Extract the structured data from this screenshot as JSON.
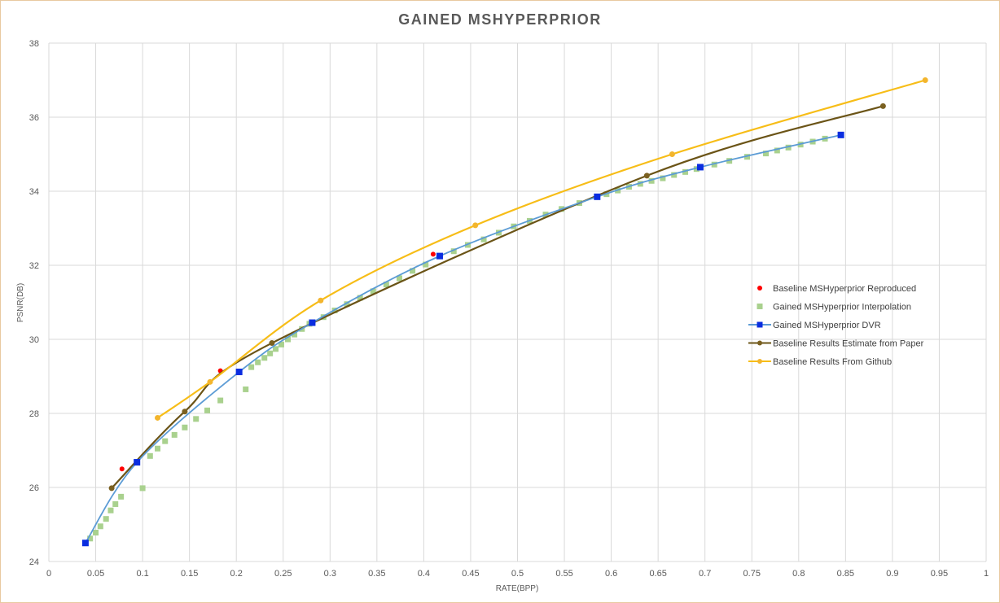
{
  "chart_data": {
    "type": "scatter",
    "title": "GAINED MSHYPERPRIOR",
    "xlabel": "RATE(BPP)",
    "ylabel": "PSNR(DB)",
    "xlim": [
      0,
      1
    ],
    "ylim": [
      24,
      38
    ],
    "xticks": [
      "0",
      "0.05",
      "0.1",
      "0.15",
      "0.2",
      "0.25",
      "0.3",
      "0.35",
      "0.4",
      "0.45",
      "0.5",
      "0.55",
      "0.6",
      "0.65",
      "0.7",
      "0.75",
      "0.8",
      "0.85",
      "0.9",
      "0.95",
      "1"
    ],
    "yticks": [
      "24",
      "26",
      "28",
      "30",
      "32",
      "34",
      "36",
      "38"
    ],
    "grid": true,
    "legend_position": "right",
    "series": [
      {
        "name": "Baseline MSHyperprior Reproduced",
        "style": "markers",
        "marker": "circle",
        "color": "#ff0000",
        "x": [
          0.078,
          0.183,
          0.41
        ],
        "y": [
          26.5,
          29.15,
          32.3
        ]
      },
      {
        "name": "Gained MSHyperprior Interpolation",
        "style": "markers",
        "marker": "square",
        "color": "#a9d18e",
        "x": [
          0.044,
          0.05,
          0.055,
          0.061,
          0.066,
          0.071,
          0.077,
          0.1,
          0.108,
          0.116,
          0.124,
          0.134,
          0.145,
          0.157,
          0.169,
          0.183,
          0.21,
          0.216,
          0.223,
          0.23,
          0.236,
          0.242,
          0.248,
          0.255,
          0.262,
          0.27,
          0.278,
          0.293,
          0.305,
          0.318,
          0.332,
          0.346,
          0.36,
          0.374,
          0.388,
          0.402,
          0.432,
          0.447,
          0.464,
          0.48,
          0.496,
          0.513,
          0.53,
          0.547,
          0.566,
          0.595,
          0.607,
          0.619,
          0.631,
          0.643,
          0.655,
          0.667,
          0.679,
          0.691,
          0.71,
          0.726,
          0.745,
          0.765,
          0.777,
          0.789,
          0.802,
          0.815,
          0.828
        ],
        "y": [
          24.62,
          24.78,
          24.95,
          25.15,
          25.38,
          25.55,
          25.75,
          25.98,
          26.85,
          27.05,
          27.25,
          27.42,
          27.62,
          27.85,
          28.08,
          28.35,
          28.65,
          29.25,
          29.38,
          29.5,
          29.62,
          29.74,
          29.86,
          30.0,
          30.13,
          30.28,
          30.42,
          30.6,
          30.78,
          30.95,
          31.12,
          31.3,
          31.48,
          31.65,
          31.85,
          32.02,
          32.38,
          32.55,
          32.7,
          32.88,
          33.05,
          33.2,
          33.37,
          33.52,
          33.68,
          33.92,
          34.02,
          34.12,
          34.2,
          34.28,
          34.35,
          34.44,
          34.52,
          34.6,
          34.72,
          34.82,
          34.93,
          35.02,
          35.1,
          35.18,
          35.26,
          35.34,
          35.42
        ]
      },
      {
        "name": "Gained MSHyperprior DVR",
        "style": "line+markers",
        "marker": "square",
        "color": "#5b9bd5",
        "marker_color": "#0a2de0",
        "x": [
          0.039,
          0.094,
          0.203,
          0.281,
          0.417,
          0.585,
          0.695,
          0.845
        ],
        "y": [
          24.5,
          26.68,
          29.12,
          30.45,
          32.25,
          33.85,
          34.65,
          35.52
        ]
      },
      {
        "name": "Baseline Results Estimate from Paper",
        "style": "line+markers",
        "marker": "circle",
        "color": "#6b5417",
        "marker_color": "#7a6020",
        "x": [
          0.067,
          0.145,
          0.238,
          0.638,
          0.89
        ],
        "y": [
          25.98,
          28.05,
          29.9,
          34.42,
          36.3
        ]
      },
      {
        "name": "Baseline Results From Github",
        "style": "line+markers",
        "marker": "circle",
        "color": "#f7bd17",
        "marker_color": "#f3b52d",
        "x": [
          0.116,
          0.172,
          0.29,
          0.455,
          0.665,
          0.935
        ],
        "y": [
          27.88,
          28.85,
          31.05,
          33.08,
          35.0,
          37.0
        ]
      }
    ]
  }
}
